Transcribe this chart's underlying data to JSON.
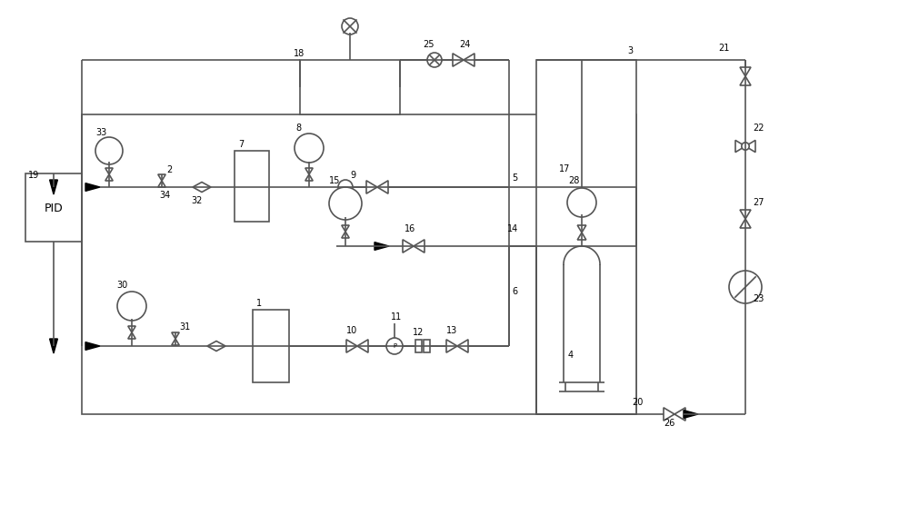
{
  "bg_color": "#ffffff",
  "line_color": "#555555",
  "lw": 1.2,
  "fig_width": 10.0,
  "fig_height": 5.56,
  "dpi": 100
}
